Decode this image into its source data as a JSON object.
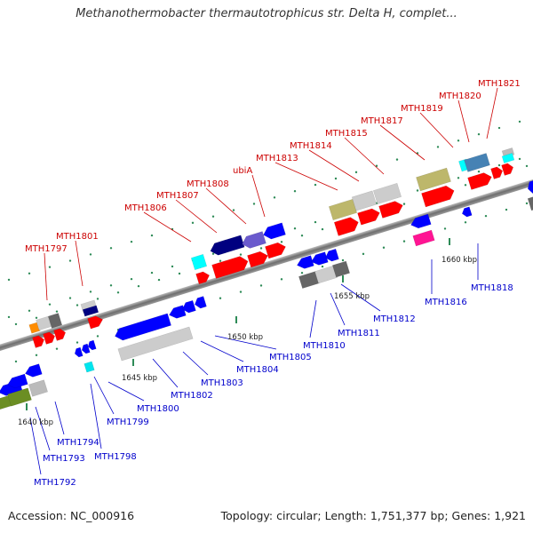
{
  "title": "Methanothermobacter thermautotrophicus str. Delta H, complet...",
  "footer": {
    "accession": "Accession: NC_000916",
    "topology": "Topology: circular; Length: 1,751,377 bp; Genes: 1,921"
  },
  "colors": {
    "forward_label": "#cc0000",
    "reverse_label": "#0000cc",
    "backbone": "#7a7a7a"
  },
  "tick_labels": [
    "1640 kbp",
    "1645 kbp",
    "1650 kbp",
    "1655 kbp",
    "1660 kbp"
  ],
  "forward_genes": [
    "MTH1797",
    "MTH1801",
    "MTH1806",
    "MTH1807",
    "MTH1808",
    "ubiA",
    "MTH1813",
    "MTH1814",
    "MTH1815",
    "MTH1817",
    "MTH1819",
    "MTH1820",
    "MTH1821"
  ],
  "reverse_genes": [
    "MTH1792",
    "MTH1793",
    "MTH1794",
    "MTH1798",
    "MTH1799",
    "MTH1800",
    "MTH1802",
    "MTH1803",
    "MTH1804",
    "MTH1805",
    "MTH1810",
    "MTH1811",
    "MTH1812",
    "MTH1816",
    "MTH1818"
  ]
}
